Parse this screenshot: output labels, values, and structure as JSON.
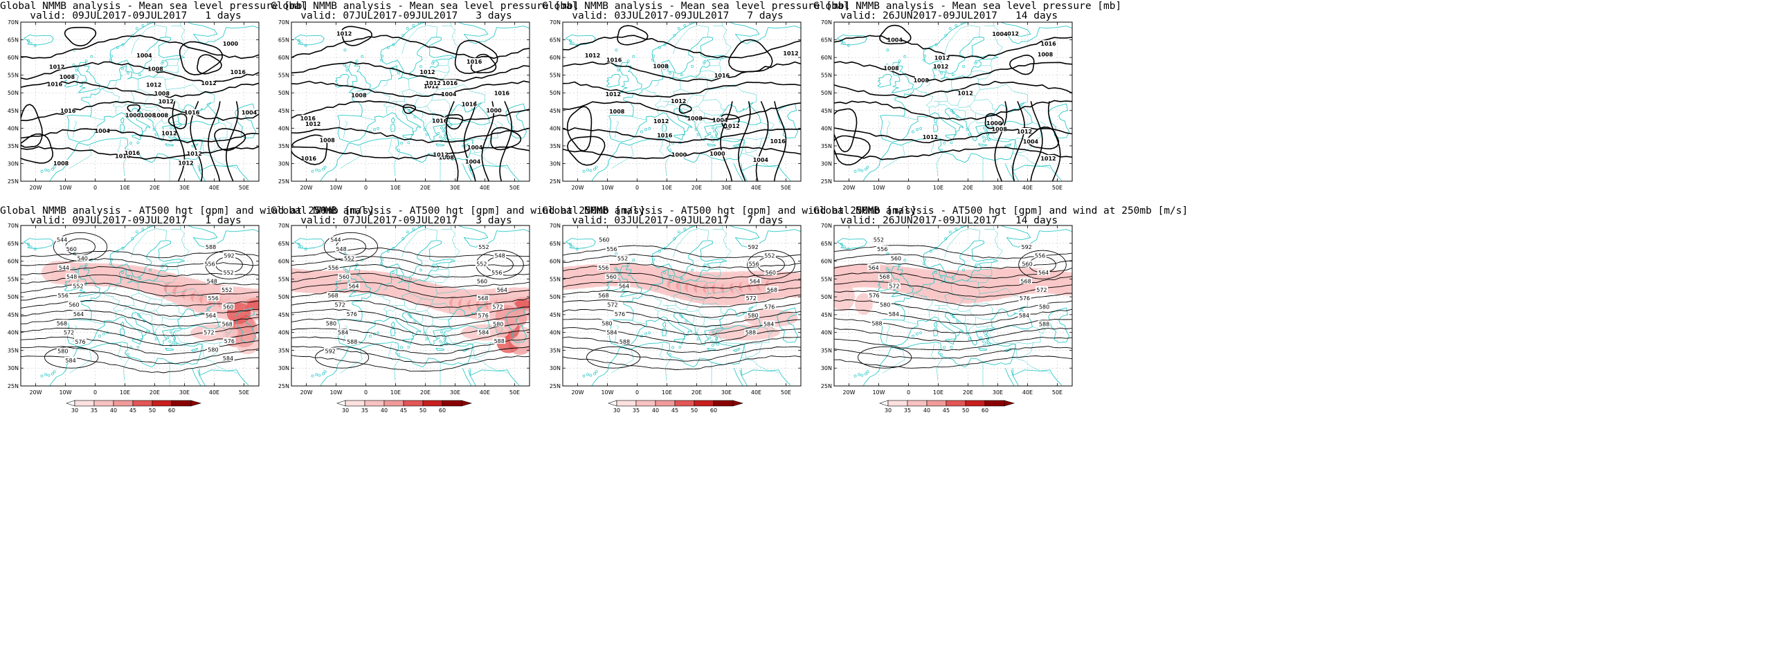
{
  "colors": {
    "coast": "#2ec8c8",
    "contour": "#000000",
    "jet_light": "#f9c8c8",
    "jet_mid": "#f19a9a",
    "jet_dark": "#e35656",
    "grid": "#bfbfbf"
  },
  "axes": {
    "x_ticks": [
      "20W",
      "10W",
      "0",
      "10E",
      "20E",
      "30E",
      "40E",
      "50E"
    ],
    "y_ticks": [
      "70N",
      "65N",
      "60N",
      "55N",
      "50N",
      "45N",
      "40N",
      "35N",
      "30N",
      "25N"
    ]
  },
  "colorbar": {
    "ticks": [
      "30",
      "35",
      "40",
      "45",
      "50",
      "60"
    ]
  },
  "mslp_panels": [
    {
      "title": "Global NMMB analysis - Mean sea level pressure [mb]",
      "subtitle": "valid: 09JUL2017-09JUL2017   1 days",
      "contour_labels": [
        "1008",
        "1004",
        "1016",
        "1000",
        "1008",
        "1004",
        "1012",
        "1008",
        "1016",
        "1016",
        "1016",
        "1012",
        "1012",
        "1012",
        "1012",
        "1016",
        "1012",
        "1008",
        "1008",
        "1004",
        "1000",
        "1012",
        "1016",
        "1008"
      ]
    },
    {
      "title": "Global NMMB analysis - Mean sea level pressure [mb]",
      "subtitle": "valid: 07JUL2017-09JUL2017   3 days",
      "contour_labels": [
        "1004",
        "1008",
        "1008",
        "1004",
        "1012",
        "1012",
        "1016",
        "1016",
        "1016",
        "1016",
        "1016",
        "1012",
        "1008",
        "1004",
        "1000",
        "1012",
        "1016",
        "1012",
        "1012",
        "1016"
      ]
    },
    {
      "title": "Global NMMB analysis - Mean sea level pressure [mb]",
      "subtitle": "valid: 03JUL2017-09JUL2017   7 days",
      "contour_labels": [
        "1008",
        "1012",
        "1008",
        "1004",
        "1000",
        "1016",
        "1012",
        "1012",
        "1016",
        "1016",
        "1012",
        "1012",
        "1008",
        "1004",
        "1000",
        "1012",
        "1016"
      ]
    },
    {
      "title": "Global NMMB analysis - Mean sea level pressure [mb]",
      "subtitle": "valid: 26JUN2017-09JUL2017   14 days",
      "contour_labels": [
        "1008",
        "1008",
        "1004",
        "1012",
        "1008",
        "1012",
        "1016",
        "1012",
        "1012",
        "1008",
        "1012",
        "1004",
        "1000",
        "1012",
        "1012",
        "1004"
      ]
    }
  ],
  "z500_panels": [
    {
      "title": "Global NMMB analysis - AT500 hgt [gpm] and wind at 250mb [m/s]",
      "subtitle": "valid: 09JUL2017-09JUL2017   1 days",
      "contour_labels": [
        "544",
        "560",
        "540",
        "544",
        "548",
        "552",
        "556",
        "560",
        "564",
        "568",
        "572",
        "576",
        "580",
        "584",
        "588",
        "592",
        "556",
        "552",
        "548",
        "552",
        "556",
        "560",
        "564",
        "568",
        "572",
        "576",
        "580",
        "584"
      ]
    },
    {
      "title": "Global NMMB analysis - AT500 hgt [gpm] and wind at 250mb [m/s]",
      "subtitle": "valid: 07JUL2017-09JUL2017   3 days",
      "contour_labels": [
        "544",
        "548",
        "552",
        "556",
        "560",
        "564",
        "568",
        "572",
        "576",
        "580",
        "584",
        "588",
        "592",
        "552",
        "548",
        "552",
        "556",
        "560",
        "564",
        "568",
        "572",
        "576",
        "580",
        "584",
        "588"
      ]
    },
    {
      "title": "Global NMMB analysis - AT500 hgt [gpm] and wind at 250mb [m/s]",
      "subtitle": "valid: 03JUL2017-09JUL2017   7 days",
      "contour_labels": [
        "560",
        "556",
        "552",
        "556",
        "560",
        "564",
        "568",
        "572",
        "576",
        "580",
        "584",
        "588",
        "592",
        "552",
        "556",
        "560",
        "564",
        "568",
        "572",
        "576",
        "580",
        "584",
        "588"
      ]
    },
    {
      "title": "Global NMMB analysis - AT500 hgt [gpm] and wind at 250mb [m/s]",
      "subtitle": "valid: 26JUN2017-09JUL2017   14 days",
      "contour_labels": [
        "552",
        "556",
        "560",
        "564",
        "568",
        "572",
        "576",
        "580",
        "584",
        "588",
        "592",
        "556",
        "560",
        "564",
        "568",
        "572",
        "576",
        "580",
        "584",
        "588"
      ]
    }
  ]
}
